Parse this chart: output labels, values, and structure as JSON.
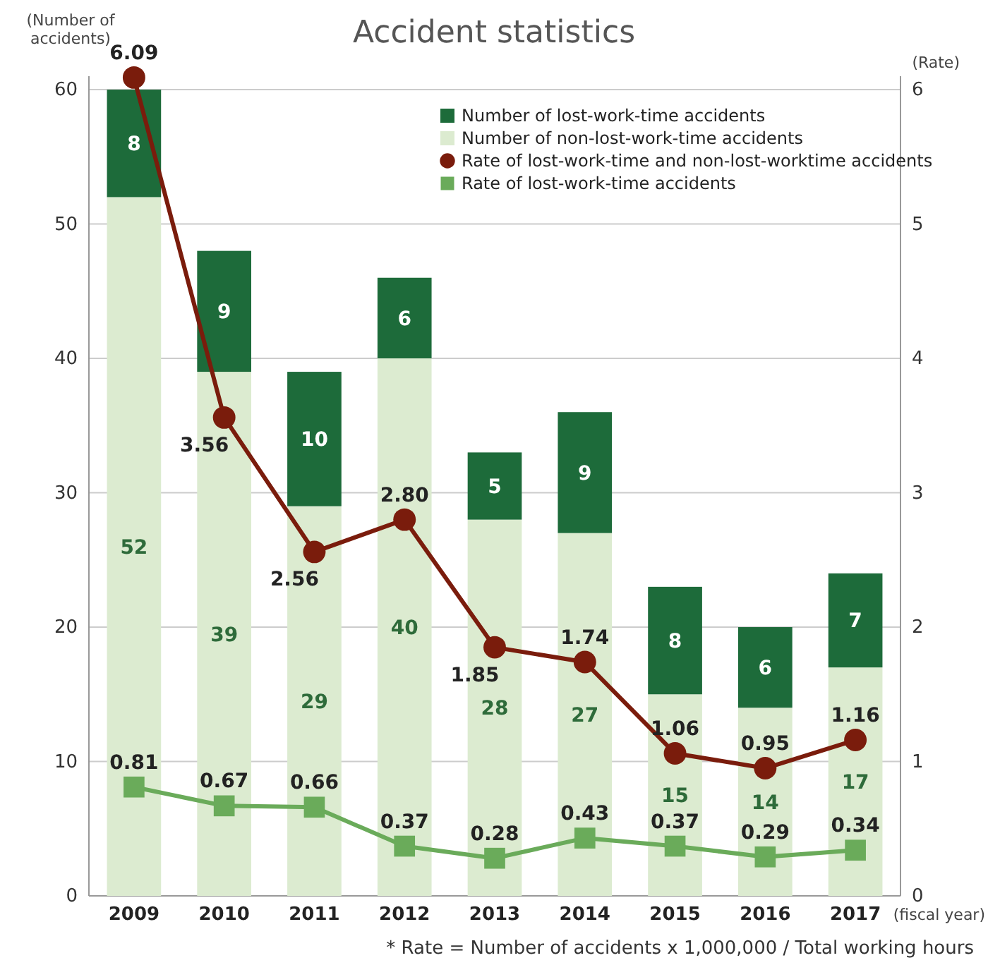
{
  "chart_data": {
    "type": "bar",
    "title": "Accident statistics",
    "ylabel": "(Number of accidents)",
    "y2label": "(Rate)",
    "xlabel": "(fiscal year)",
    "annotations": [
      "* Rate = Number of accidents x 1,000,000 / Total working hours"
    ],
    "categories": [
      "2009",
      "2010",
      "2011",
      "2012",
      "2013",
      "2014",
      "2015",
      "2016",
      "2017"
    ],
    "stacked": true,
    "data_labels": true,
    "grid": "y",
    "legend": "top right",
    "ylim": [
      0,
      61
    ],
    "yticks": [
      0,
      10,
      20,
      30,
      40,
      50,
      60
    ],
    "y2lim": [
      0,
      6.1
    ],
    "y2ticks": [
      0,
      1,
      2,
      3,
      4,
      5,
      6
    ],
    "series": [
      {
        "name": "Number of non-lost-work-time accidents",
        "color": "#dcebd0",
        "values": [
          52,
          39,
          29,
          40,
          28,
          27,
          15,
          14,
          17
        ]
      },
      {
        "name": "Number of lost-work-time accidents",
        "color": "#1d6b3a",
        "values": [
          8,
          9,
          10,
          6,
          5,
          9,
          8,
          6,
          7
        ]
      },
      {
        "name": "Rate of lost-work-time and non-lost-worktime accidents",
        "type": "line",
        "axis": "y2",
        "marker": "circle",
        "color": "#7a1c0c",
        "values": [
          6.09,
          3.56,
          2.56,
          2.8,
          1.85,
          1.74,
          1.06,
          0.95,
          1.16
        ],
        "value_labels": [
          "6.09",
          "3.56",
          "2.56",
          "2.80",
          "1.85",
          "1.74",
          "1.06",
          "0.95",
          "1.16"
        ]
      },
      {
        "name": "Rate of lost-work-time accidents",
        "type": "line",
        "axis": "y2",
        "marker": "square",
        "color": "#6aab5a",
        "values": [
          0.81,
          0.67,
          0.66,
          0.37,
          0.28,
          0.43,
          0.37,
          0.29,
          0.34
        ],
        "value_labels": [
          "0.81",
          "0.67",
          "0.66",
          "0.37",
          "0.28",
          "0.43",
          "0.37",
          "0.29",
          "0.34"
        ]
      }
    ]
  }
}
